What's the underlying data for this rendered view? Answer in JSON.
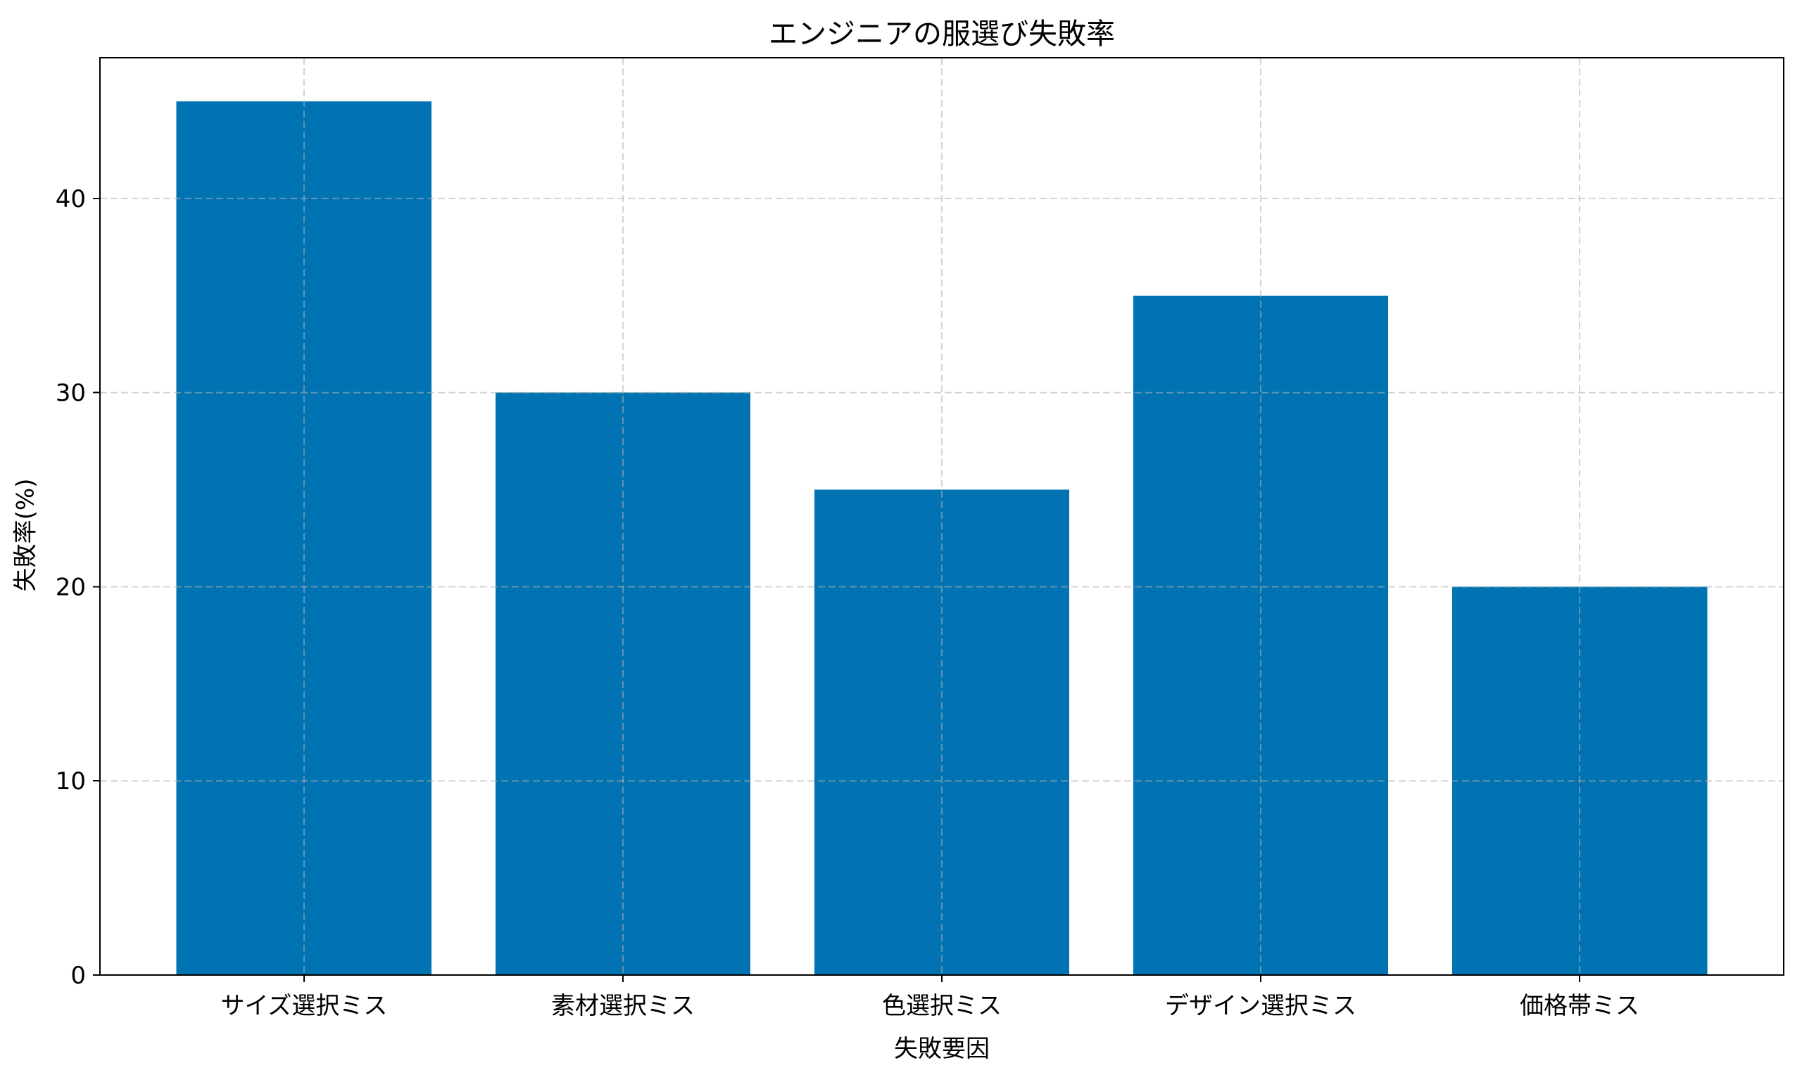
{
  "chart_data": {
    "type": "bar",
    "title": "エンジニアの服選び失敗率",
    "xlabel": "失敗要因",
    "ylabel": "失敗率(%)",
    "categories": [
      "サイズ選択ミス",
      "素材選択ミス",
      "色選択ミス",
      "デザイン選択ミス",
      "価格帯ミス"
    ],
    "values": [
      45,
      30,
      25,
      35,
      20
    ],
    "ylim": [
      0,
      47.25
    ],
    "yticks": [
      0,
      10,
      20,
      30,
      40
    ],
    "bar_width_fraction": 0.8,
    "grid": {
      "visible": true,
      "axis": "both",
      "style": "dashed",
      "drawn_above_bars": true
    },
    "legend_position": "none",
    "colors": {
      "bar": "#0173b2",
      "grid": "rgba(176,176,176,0.55)",
      "spine": "#000000",
      "tick": "#000000",
      "text": "#000000",
      "background": "#ffffff"
    }
  }
}
